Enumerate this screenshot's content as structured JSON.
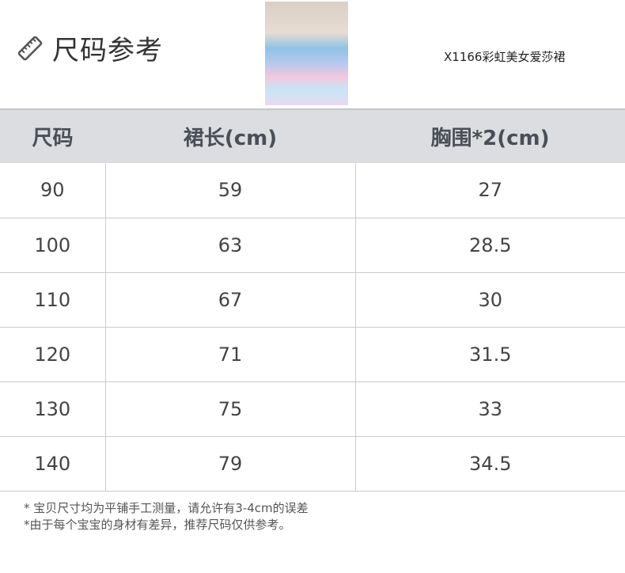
{
  "header": {
    "title": "尺码参考",
    "icon": "ruler-icon",
    "product_name": "X1166彩虹美女爱莎裙"
  },
  "table": {
    "columns": [
      "尺码",
      "裙长(cm)",
      "胸围*2(cm)"
    ],
    "rows": [
      [
        "90",
        "59",
        "27"
      ],
      [
        "100",
        "63",
        "28.5"
      ],
      [
        "110",
        "67",
        "30"
      ],
      [
        "120",
        "71",
        "31.5"
      ],
      [
        "130",
        "75",
        "33"
      ],
      [
        "140",
        "79",
        "34.5"
      ]
    ]
  },
  "notes": [
    "* 宝贝尺寸均为平铺手工测量，请允许有3-4cm的误差",
    "*由于每个宝宝的身材有差异，推荐尺码仅供参考。"
  ]
}
